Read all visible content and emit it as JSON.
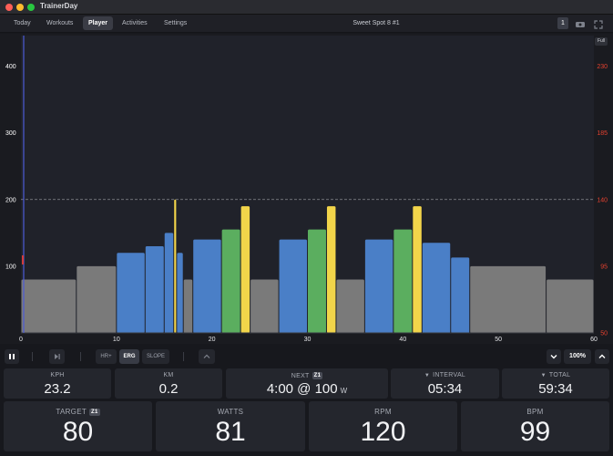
{
  "app": {
    "title": "TrainerDay"
  },
  "nav": {
    "tabs": [
      {
        "label": "Today"
      },
      {
        "label": "Workouts"
      },
      {
        "label": "Player"
      },
      {
        "label": "Activities"
      },
      {
        "label": "Settings"
      }
    ],
    "active_tab": "Player",
    "workout_title": "Sweet Spot 8 #1",
    "badge": "1"
  },
  "chart": {
    "full_label": "Full"
  },
  "chart_data": {
    "type": "bar",
    "x_ticks": [
      "0",
      "10",
      "20",
      "30",
      "40",
      "50",
      "60"
    ],
    "xlim": [
      0,
      60
    ],
    "y_ticks_left": [
      "100",
      "200",
      "300",
      "400"
    ],
    "ylim_left": [
      0,
      450
    ],
    "y_ticks_right": [
      "50",
      "95",
      "140",
      "185",
      "230"
    ],
    "ylim_right": [
      50,
      252.5
    ],
    "threshold_line": 200,
    "current_time": 16.2,
    "segments": [
      {
        "start": 0.0,
        "end": 5.8,
        "value": 80,
        "zone": "gray"
      },
      {
        "start": 5.8,
        "end": 10.0,
        "value": 100,
        "zone": "gray"
      },
      {
        "start": 10.0,
        "end": 13.0,
        "value": 120,
        "zone": "blue"
      },
      {
        "start": 13.0,
        "end": 15.0,
        "value": 130,
        "zone": "blue"
      },
      {
        "start": 15.0,
        "end": 16.0,
        "value": 150,
        "zone": "blue"
      },
      {
        "start": 16.0,
        "end": 16.3,
        "value": 200,
        "zone": "yellow"
      },
      {
        "start": 16.3,
        "end": 17.0,
        "value": 120,
        "zone": "blue"
      },
      {
        "start": 17.0,
        "end": 18.0,
        "value": 80,
        "zone": "gray"
      },
      {
        "start": 18.0,
        "end": 21.0,
        "value": 140,
        "zone": "blue"
      },
      {
        "start": 21.0,
        "end": 23.0,
        "value": 155,
        "zone": "green"
      },
      {
        "start": 23.0,
        "end": 24.0,
        "value": 190,
        "zone": "yellow"
      },
      {
        "start": 24.0,
        "end": 27.0,
        "value": 80,
        "zone": "gray"
      },
      {
        "start": 27.0,
        "end": 30.0,
        "value": 140,
        "zone": "blue"
      },
      {
        "start": 30.0,
        "end": 32.0,
        "value": 155,
        "zone": "green"
      },
      {
        "start": 32.0,
        "end": 33.0,
        "value": 190,
        "zone": "yellow"
      },
      {
        "start": 33.0,
        "end": 36.0,
        "value": 80,
        "zone": "gray"
      },
      {
        "start": 36.0,
        "end": 39.0,
        "value": 140,
        "zone": "blue"
      },
      {
        "start": 39.0,
        "end": 41.0,
        "value": 155,
        "zone": "green"
      },
      {
        "start": 41.0,
        "end": 42.0,
        "value": 190,
        "zone": "yellow"
      },
      {
        "start": 42.0,
        "end": 45.0,
        "value": 135,
        "zone": "blue"
      },
      {
        "start": 45.0,
        "end": 47.0,
        "value": 113,
        "zone": "blue"
      },
      {
        "start": 47.0,
        "end": 55.0,
        "value": 100,
        "zone": "gray"
      },
      {
        "start": 55.0,
        "end": 60.0,
        "value": 80,
        "zone": "gray"
      }
    ],
    "colors": {
      "gray": "#7a7a7a",
      "blue": "#4a7fc7",
      "green": "#5bae5f",
      "yellow": "#f2d54a",
      "left_axis": "#ffffff",
      "right_axis": "#e5412f",
      "threshold": "#8a8c92",
      "cursor": "#4b5bd8"
    }
  },
  "controls": {
    "hr_label": "HR+",
    "erg_label": "ERG",
    "slope_label": "SLOPE",
    "zoom_value": "100%"
  },
  "metrics": {
    "kph": {
      "label": "KPH",
      "value": "23.2"
    },
    "km": {
      "label": "KM",
      "value": "0.2"
    },
    "next": {
      "label": "NEXT",
      "zone": "Z1",
      "value": "4:00 @ 100",
      "unit": "W"
    },
    "interval": {
      "label": "INTERVAL",
      "value": "05:34"
    },
    "total": {
      "label": "TOTAL",
      "value": "59:34"
    },
    "target": {
      "label": "TARGET",
      "zone": "Z1",
      "value": "80"
    },
    "watts": {
      "label": "WATTS",
      "value": "81"
    },
    "rpm": {
      "label": "RPM",
      "value": "120"
    },
    "bpm": {
      "label": "BPM",
      "value": "99"
    }
  }
}
